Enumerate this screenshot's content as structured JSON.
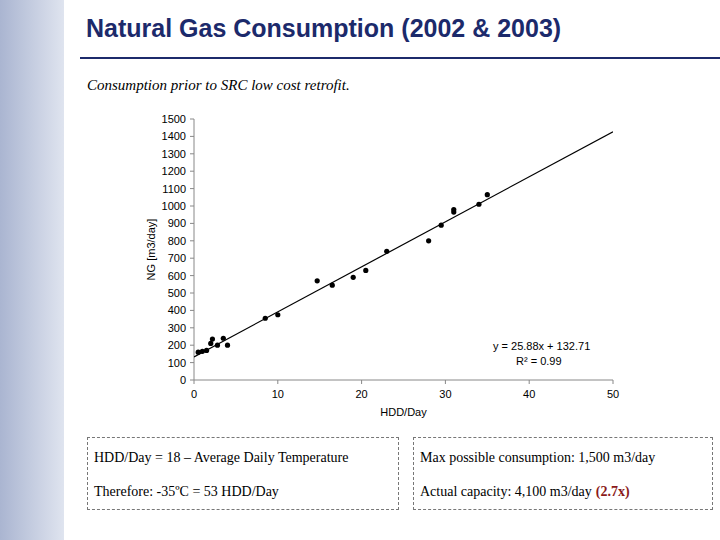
{
  "title": "Natural Gas Consumption (2002 & 2003)",
  "subtitle": "Consumption prior to SRC low cost retrofit.",
  "chart_data": {
    "type": "scatter",
    "x_label": "HDD/Day",
    "y_label": "NG [m3/day]",
    "x": [
      0.5,
      1,
      1.5,
      2,
      2.2,
      2.8,
      3.5,
      4,
      8.5,
      10,
      14.7,
      16.5,
      19,
      20.5,
      23,
      28,
      29.5,
      31,
      31,
      34,
      35
    ],
    "values": [
      160,
      165,
      170,
      210,
      235,
      200,
      240,
      200,
      355,
      375,
      570,
      545,
      590,
      630,
      740,
      800,
      890,
      980,
      965,
      1010,
      1065
    ],
    "color": "#000000",
    "marker": "circle",
    "xlim": [
      0,
      50
    ],
    "ylim": [
      0,
      1500
    ],
    "xticks": [
      0,
      10,
      20,
      30,
      40,
      50
    ],
    "yticks": [
      0,
      100,
      200,
      300,
      400,
      500,
      600,
      700,
      800,
      900,
      1000,
      1100,
      1200,
      1300,
      1400,
      1500
    ],
    "grid": false,
    "trendline": {
      "slope": 25.88,
      "intercept": 132.71,
      "equation": "y = 25.88x + 132.71",
      "r_squared": "R² = 0.99"
    }
  },
  "notes": {
    "left": [
      "HDD/Day = 18 – Average Daily Temperature",
      "Therefore: -35ºC = 53 HDD/Day"
    ],
    "right": [
      "Max possible consumption: 1,500 m3/day",
      {
        "text": "Actual capacity: 4,100 m3/day",
        "highlight": "(2.7x)"
      }
    ]
  }
}
